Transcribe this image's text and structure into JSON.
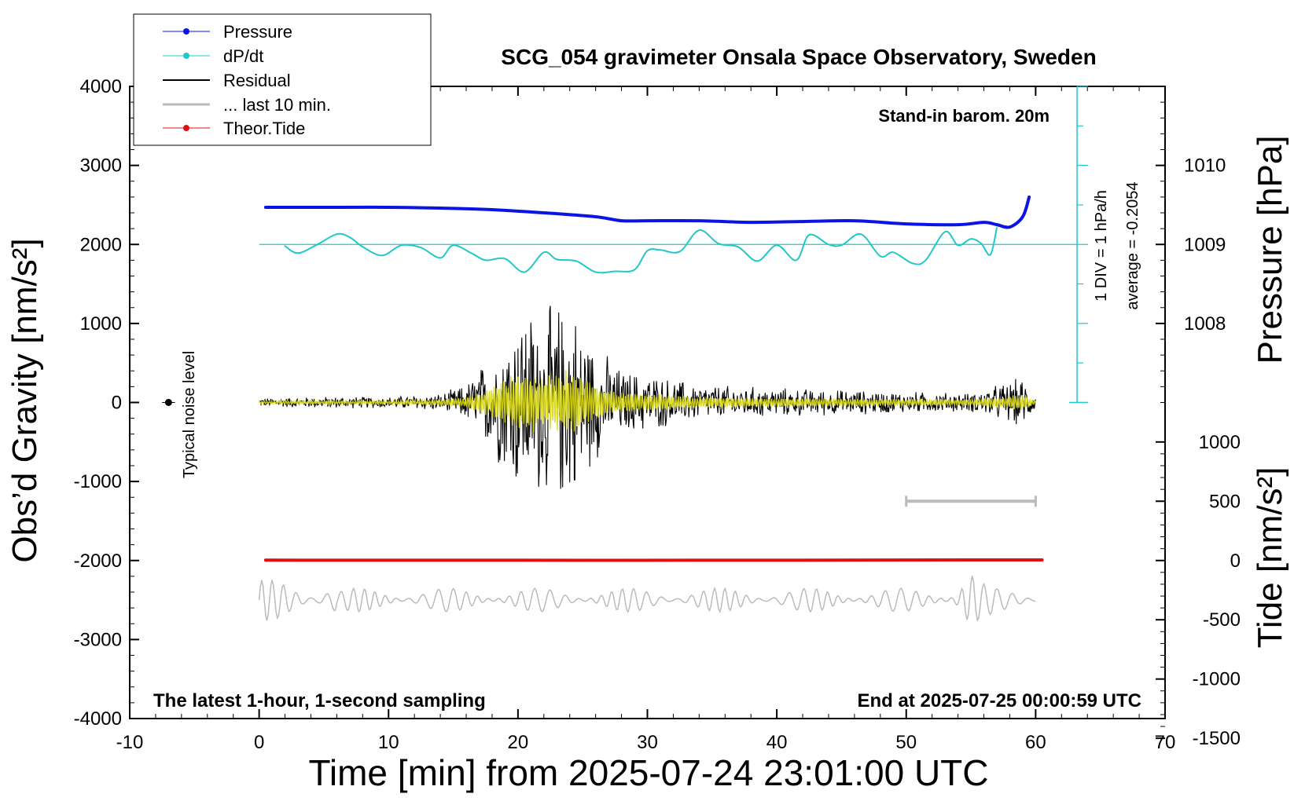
{
  "chart_data": {
    "type": "line",
    "title": "SCG_054 gravimeter Onsala Space Observatory, Sweden",
    "xlabel": "Time [min] from 2025-07-24 23:01:00 UTC",
    "ylabel_left": "Obs’d Gravity [nm/s²]",
    "ylabel_right_top": "Pressure [hPa]",
    "ylabel_right_bottom": "Tide [nm/s²]",
    "xlim": [
      -10,
      70
    ],
    "ylim": [
      -4000,
      4000
    ],
    "x_ticks": [
      "-10",
      "0",
      "10",
      "20",
      "30",
      "40",
      "50",
      "60",
      "70"
    ],
    "y_ticks": [
      "-4000",
      "-3000",
      "-2000",
      "-1000",
      "0",
      "1000",
      "2000",
      "3000",
      "4000"
    ],
    "pressure_ticks": [
      "1008",
      "1009",
      "1010"
    ],
    "tide_ticks": [
      "-1500",
      "-1000",
      "-500",
      "0",
      "500",
      "1000"
    ],
    "legend": {
      "placement": "top-left",
      "entries": [
        {
          "label": "Pressure",
          "color": "#0a14e6",
          "style": "line-dot"
        },
        {
          "label": "dP/dt",
          "color": "#20c8c8",
          "style": "line-dot"
        },
        {
          "label": "Residual",
          "color": "#000000",
          "style": "line"
        },
        {
          "label": "... last 10 min.",
          "color": "#bbbbbb",
          "style": "line"
        },
        {
          "label": "Theor.Tide",
          "color": "#e01010",
          "style": "line-dot"
        }
      ]
    },
    "annotations": {
      "barometer": "Stand-in barom. 20m",
      "latest": "The latest 1-hour, 1-second sampling",
      "end": "End at 2025-07-25 00:00:59 UTC",
      "noise": "Typical noise level",
      "div": "1 DIV = 1 hPa/h",
      "average": "average = -0.2054"
    },
    "series": [
      {
        "name": "Pressure",
        "unit": "hPa",
        "color": "#0a14e6",
        "x": [
          0.5,
          3,
          6,
          10,
          14,
          18,
          22,
          26,
          28,
          30,
          34,
          38,
          42,
          46,
          50,
          54,
          56,
          57,
          58,
          59,
          59.5
        ],
        "y": [
          1009.47,
          1009.47,
          1009.47,
          1009.47,
          1009.46,
          1009.44,
          1009.4,
          1009.35,
          1009.3,
          1009.3,
          1009.3,
          1009.28,
          1009.29,
          1009.3,
          1009.26,
          1009.25,
          1009.28,
          1009.25,
          1009.22,
          1009.35,
          1009.6
        ]
      },
      {
        "name": "dP/dt",
        "unit": "nm/s² (plot units)",
        "color": "#20c8c8",
        "x": [
          2,
          3,
          4.5,
          6,
          7,
          8,
          9.5,
          11,
          12.5,
          14,
          15,
          16.5,
          17.5,
          19,
          20.5,
          22,
          23,
          24.5,
          26,
          27.5,
          29,
          30,
          31,
          32.5,
          34,
          35.5,
          37,
          38.5,
          40,
          41.5,
          42.5,
          44,
          45,
          46.5,
          48,
          49,
          50.5,
          51.5,
          53,
          54,
          55,
          55.8,
          56.5,
          57
        ],
        "y": [
          1980,
          1890,
          2000,
          2130,
          2090,
          1970,
          1860,
          1990,
          1960,
          1830,
          1990,
          1880,
          1800,
          1820,
          1650,
          1900,
          1810,
          1790,
          1650,
          1660,
          1680,
          1920,
          1930,
          1910,
          2180,
          2010,
          1970,
          1790,
          1990,
          1800,
          2120,
          2000,
          1990,
          2130,
          1850,
          1900,
          1760,
          1800,
          2160,
          1990,
          2070,
          2010,
          1870,
          2210
        ]
      },
      {
        "name": "Theor.Tide",
        "unit": "nm/s² (tide axis)",
        "color": "#e01010",
        "x": [
          0.5,
          20,
          40,
          55,
          60.5
        ],
        "y": [
          3,
          2,
          2,
          5,
          5
        ]
      }
    ],
    "residual_envelope": {
      "x": [
        0,
        5,
        10,
        14,
        16,
        18,
        20,
        22,
        24,
        26,
        28,
        30,
        34,
        40,
        50,
        55,
        59,
        60
      ],
      "amp": [
        60,
        80,
        80,
        120,
        250,
        700,
        1300,
        1300,
        1400,
        800,
        450,
        400,
        250,
        200,
        150,
        130,
        350,
        80
      ]
    },
    "last10_bar": {
      "x": [
        50,
        60
      ],
      "tide_value": 500
    },
    "grey_trace_offset": -2500,
    "colors": {
      "residual": "#000000",
      "overlay": "#d8d810",
      "last10": "#bbbbbb",
      "axis_cyan": "#20c8c8"
    }
  }
}
